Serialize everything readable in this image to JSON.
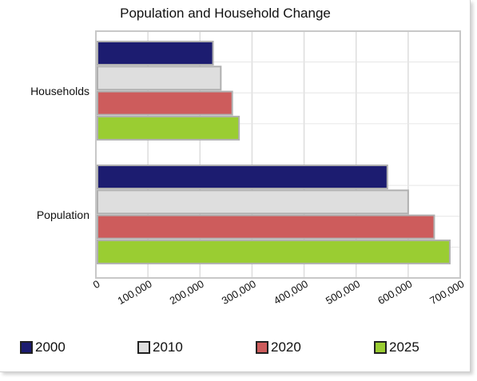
{
  "chart_data": {
    "type": "bar",
    "orientation": "horizontal",
    "title": "Population and Household Change",
    "categories": [
      "Households",
      "Population"
    ],
    "series": [
      {
        "name": "2000",
        "color": "#1c1c70",
        "values": [
          225000,
          560000
        ]
      },
      {
        "name": "2010",
        "color": "#dedede",
        "values": [
          240000,
          600000
        ]
      },
      {
        "name": "2020",
        "color": "#cd5c5c",
        "values": [
          262000,
          650000
        ]
      },
      {
        "name": "2025",
        "color": "#9acd32",
        "values": [
          275000,
          680000
        ]
      }
    ],
    "xlim": [
      0,
      700000
    ],
    "xticks": [
      "0",
      "100,000",
      "200,000",
      "300,000",
      "400,000",
      "500,000",
      "600,000",
      "700,000"
    ],
    "grid": true,
    "legend_position": "bottom"
  }
}
